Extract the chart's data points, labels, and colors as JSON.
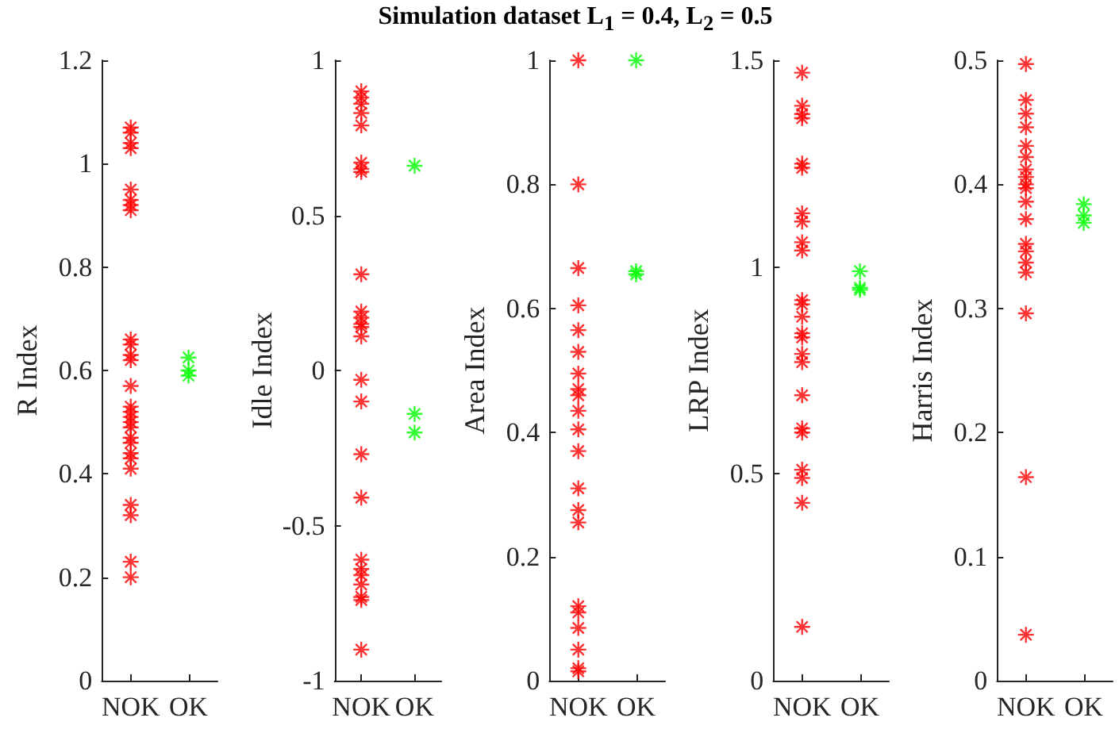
{
  "chart_data": [
    {
      "type": "scatter",
      "categories": [
        "NOK",
        "OK"
      ],
      "ylabel": "R Index",
      "ylim": [
        0,
        1.2
      ],
      "yticks": [
        0,
        0.2,
        0.4,
        0.6,
        0.8,
        1,
        1.2
      ],
      "marker": "cross",
      "grid": false,
      "series": [
        {
          "color": "#ff0000",
          "x": [
            "NOK",
            "NOK",
            "NOK",
            "NOK",
            "NOK",
            "NOK",
            "NOK",
            "NOK",
            "NOK",
            "NOK",
            "NOK",
            "NOK",
            "NOK",
            "NOK",
            "NOK",
            "NOK",
            "NOK",
            "NOK",
            "NOK",
            "NOK",
            "NOK",
            "NOK",
            "NOK",
            "NOK",
            "NOK",
            "NOK",
            "NOK"
          ],
          "values": [
            1.07,
            1.06,
            1.04,
            1.03,
            0.95,
            0.93,
            0.92,
            0.91,
            0.66,
            0.65,
            0.63,
            0.62,
            0.57,
            0.53,
            0.52,
            0.51,
            0.5,
            0.49,
            0.47,
            0.46,
            0.44,
            0.43,
            0.41,
            0.34,
            0.32,
            0.23,
            0.2
          ]
        },
        {
          "color": "#00ff00",
          "x": [
            "OK",
            "OK",
            "OK"
          ],
          "values": [
            0.625,
            0.6,
            0.59
          ]
        }
      ]
    },
    {
      "type": "scatter",
      "categories": [
        "NOK",
        "OK"
      ],
      "ylabel": "Idle Index",
      "ylim": [
        -1,
        1
      ],
      "yticks": [
        -1,
        -0.5,
        0,
        0.5,
        1
      ],
      "marker": "cross",
      "grid": false,
      "series": [
        {
          "color": "#ff0000",
          "x": [
            "NOK",
            "NOK",
            "NOK",
            "NOK",
            "NOK",
            "NOK",
            "NOK",
            "NOK",
            "NOK",
            "NOK",
            "NOK",
            "NOK",
            "NOK",
            "NOK",
            "NOK",
            "NOK",
            "NOK",
            "NOK",
            "NOK",
            "NOK",
            "NOK",
            "NOK",
            "NOK",
            "NOK",
            "NOK"
          ],
          "values": [
            0.9,
            0.88,
            0.86,
            0.83,
            0.79,
            0.67,
            0.65,
            0.64,
            0.31,
            0.19,
            0.17,
            0.15,
            0.14,
            0.11,
            -0.03,
            -0.1,
            -0.27,
            -0.41,
            -0.61,
            -0.64,
            -0.66,
            -0.69,
            -0.73,
            -0.74,
            -0.9
          ]
        },
        {
          "color": "#00ff00",
          "x": [
            "OK",
            "OK",
            "OK"
          ],
          "values": [
            0.66,
            -0.14,
            -0.2
          ]
        }
      ]
    },
    {
      "type": "scatter",
      "title": "Simulation dataset L$_{1}$ = 0.4, L$_{2}$ = 0.5",
      "categories": [
        "NOK",
        "OK"
      ],
      "ylabel": "Area Index",
      "ylim": [
        0,
        1
      ],
      "yticks": [
        0,
        0.2,
        0.4,
        0.6,
        0.8,
        1
      ],
      "marker": "cross",
      "grid": false,
      "series": [
        {
          "color": "#ff0000",
          "x": [
            "NOK",
            "NOK",
            "NOK",
            "NOK",
            "NOK",
            "NOK",
            "NOK",
            "NOK",
            "NOK",
            "NOK",
            "NOK",
            "NOK",
            "NOK",
            "NOK",
            "NOK",
            "NOK",
            "NOK",
            "NOK",
            "NOK",
            "NOK",
            "NOK"
          ],
          "values": [
            1,
            0.8,
            0.665,
            0.605,
            0.565,
            0.53,
            0.495,
            0.47,
            0.46,
            0.435,
            0.405,
            0.37,
            0.31,
            0.275,
            0.255,
            0.12,
            0.11,
            0.085,
            0.05,
            0.02,
            0.015
          ]
        },
        {
          "color": "#00ff00",
          "x": [
            "OK",
            "OK",
            "OK"
          ],
          "values": [
            1,
            0.66,
            0.655
          ]
        }
      ]
    },
    {
      "type": "scatter",
      "categories": [
        "NOK",
        "OK"
      ],
      "ylabel": "LRP Index",
      "ylim": [
        0,
        1.5
      ],
      "yticks": [
        0,
        0.5,
        1,
        1.5
      ],
      "marker": "cross",
      "grid": false,
      "series": [
        {
          "color": "#ff0000",
          "x": [
            "NOK",
            "NOK",
            "NOK",
            "NOK",
            "NOK",
            "NOK",
            "NOK",
            "NOK",
            "NOK",
            "NOK",
            "NOK",
            "NOK",
            "NOK",
            "NOK",
            "NOK",
            "NOK",
            "NOK",
            "NOK",
            "NOK",
            "NOK",
            "NOK",
            "NOK",
            "NOK",
            "NOK"
          ],
          "values": [
            1.47,
            1.39,
            1.37,
            1.36,
            1.25,
            1.24,
            1.13,
            1.11,
            1.06,
            1.04,
            0.92,
            0.91,
            0.88,
            0.84,
            0.83,
            0.79,
            0.77,
            0.69,
            0.61,
            0.6,
            0.51,
            0.49,
            0.43,
            0.13
          ]
        },
        {
          "color": "#00ff00",
          "x": [
            "OK",
            "OK",
            "OK"
          ],
          "values": [
            0.99,
            0.95,
            0.945
          ]
        }
      ]
    },
    {
      "type": "scatter",
      "categories": [
        "NOK",
        "OK"
      ],
      "ylabel": "Harris Index",
      "ylim": [
        0,
        0.5
      ],
      "yticks": [
        0,
        0.1,
        0.2,
        0.3,
        0.4,
        0.5
      ],
      "marker": "cross",
      "grid": false,
      "series": [
        {
          "color": "#ff0000",
          "x": [
            "NOK",
            "NOK",
            "NOK",
            "NOK",
            "NOK",
            "NOK",
            "NOK",
            "NOK",
            "NOK",
            "NOK",
            "NOK",
            "NOK",
            "NOK",
            "NOK",
            "NOK",
            "NOK",
            "NOK",
            "NOK",
            "NOK"
          ],
          "values": [
            0.497,
            0.468,
            0.457,
            0.446,
            0.431,
            0.422,
            0.412,
            0.406,
            0.4,
            0.397,
            0.386,
            0.372,
            0.352,
            0.346,
            0.337,
            0.329,
            0.296,
            0.164,
            0.037
          ]
        },
        {
          "color": "#00ff00",
          "x": [
            "OK",
            "OK",
            "OK"
          ],
          "values": [
            0.384,
            0.375,
            0.369
          ]
        }
      ]
    }
  ]
}
